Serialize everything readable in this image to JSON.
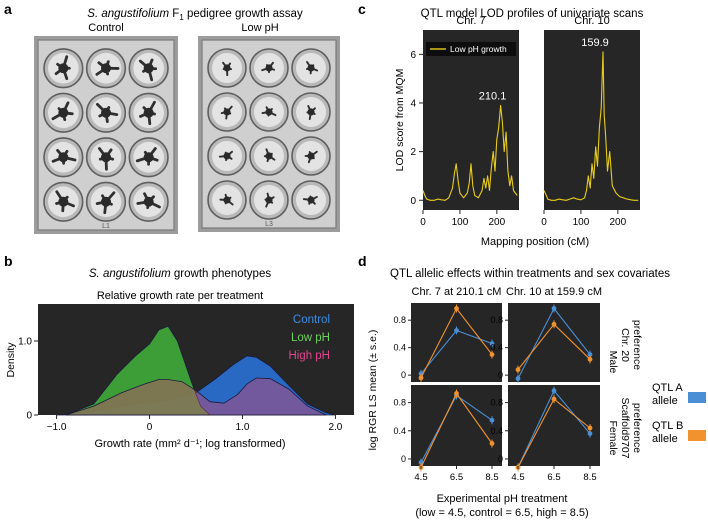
{
  "panel_letters": {
    "a": "a",
    "b": "b",
    "c": "c",
    "d": "d"
  },
  "panel_a": {
    "title_italic": "S. angustifolium",
    "title_rest": " F",
    "title_sub": "1",
    "title_end": " pedigree growth assay",
    "labels": [
      "Control",
      "Low pH"
    ],
    "plate_marks": [
      "L1",
      "L3"
    ]
  },
  "panel_b": {
    "title_italic": "S. angustifolium",
    "title_rest": " growth phenotypes",
    "subtitle": "Relative growth rate per treatment",
    "ylabel": "Density",
    "xlabel": "Growth rate (mm² d⁻¹; log transformed)"
  },
  "panel_c": {
    "title": "QTL model LOD profiles of univariate scans",
    "ylabel": "LOD score from MQM",
    "xlabel": "Mapping position (cM)",
    "legend": "Low pH growth"
  },
  "panel_d": {
    "title": "QTL allelic effects within treatments and sex covariates",
    "ylabel": "log RGR LS mean (± s.e.)",
    "xlabel": "Experimental pH treatment",
    "xnote": "(low = 4.5, control = 6.5, high = 8.5)",
    "row_labels": [
      [
        "Male",
        "Chr. 20",
        "preference"
      ],
      [
        "Female",
        "Scaffold9707",
        "preference"
      ]
    ],
    "legend": [
      {
        "line1": "QTL A",
        "line2": "allele",
        "color": "#4a8fd6"
      },
      {
        "line1": "QTL B",
        "line2": "allele",
        "color": "#f0922e"
      }
    ]
  },
  "chart_data": [
    {
      "id": "density",
      "type": "area",
      "title": "Relative growth rate per treatment",
      "xlabel": "Growth rate (mm² d⁻¹; log transformed)",
      "ylabel": "Density",
      "xlim": [
        -1.2,
        2.2
      ],
      "ylim": [
        0,
        1.5
      ],
      "xticks": [
        -1.0,
        0,
        1.0,
        2.0
      ],
      "xtick_labels": [
        "−1.0",
        "0",
        "1.0",
        "2.0"
      ],
      "yticks": [
        0,
        1.0
      ],
      "ytick_labels": [
        "0",
        "1.0"
      ],
      "series": [
        {
          "name": "Control",
          "color": "#1f6fd6",
          "x": [
            -1.0,
            -0.6,
            -0.2,
            0.2,
            0.5,
            0.7,
            0.9,
            1.05,
            1.15,
            1.3,
            1.5,
            1.7,
            1.9,
            2.0
          ],
          "values": [
            0.0,
            0.05,
            0.14,
            0.2,
            0.3,
            0.48,
            0.68,
            0.8,
            0.78,
            0.66,
            0.4,
            0.15,
            0.03,
            0.0
          ]
        },
        {
          "name": "Low pH",
          "color": "#59c04d",
          "x": [
            -0.9,
            -0.6,
            -0.35,
            -0.15,
            0.0,
            0.1,
            0.2,
            0.3,
            0.45,
            0.55,
            0.65
          ],
          "values": [
            0.0,
            0.15,
            0.55,
            0.8,
            0.96,
            1.15,
            1.2,
            1.0,
            0.45,
            0.12,
            0.0
          ]
        },
        {
          "name": "High pH",
          "color": "#e0458f",
          "x": [
            -0.9,
            -0.6,
            -0.3,
            -0.05,
            0.1,
            0.2,
            0.35,
            0.5,
            0.65,
            0.8,
            0.95,
            1.05,
            1.15,
            1.3,
            1.5,
            1.7,
            1.9
          ],
          "values": [
            0.0,
            0.12,
            0.3,
            0.42,
            0.48,
            0.48,
            0.45,
            0.33,
            0.18,
            0.16,
            0.28,
            0.42,
            0.5,
            0.49,
            0.35,
            0.12,
            0.0
          ]
        }
      ]
    },
    {
      "id": "lod",
      "type": "line",
      "title": "QTL model LOD profiles of univariate scans",
      "ylabel": "LOD score from MQM",
      "xlabel": "Mapping position (cM)",
      "series_name": "Low pH growth",
      "color": "#e8cd1c",
      "ylim": [
        -0.4,
        7.0
      ],
      "yticks": [
        0,
        2,
        4,
        6
      ],
      "panels": [
        {
          "name": "Chr. 7",
          "xlim": [
            0,
            260
          ],
          "xticks": [
            0,
            100,
            200
          ],
          "peak_label": "210.1",
          "peak_x": 210.1,
          "peak_y": 3.9,
          "x": [
            0,
            5,
            10,
            20,
            30,
            40,
            50,
            60,
            70,
            80,
            85,
            90,
            95,
            100,
            110,
            120,
            125,
            130,
            135,
            140,
            150,
            160,
            165,
            170,
            175,
            180,
            185,
            190,
            195,
            200,
            205,
            210.1,
            215,
            220,
            225,
            230,
            235,
            240,
            245,
            250,
            255
          ],
          "values": [
            0.4,
            0.2,
            0.05,
            0.0,
            0.0,
            0.05,
            0.02,
            0.0,
            0.1,
            0.5,
            1.1,
            1.5,
            0.8,
            0.3,
            0.1,
            0.3,
            0.7,
            1.5,
            0.6,
            0.2,
            0.1,
            0.4,
            0.9,
            0.5,
            1.0,
            0.4,
            1.3,
            2.0,
            1.2,
            2.5,
            3.0,
            3.9,
            3.2,
            2.0,
            2.8,
            1.2,
            0.6,
            1.0,
            0.4,
            0.3,
            0.2
          ]
        },
        {
          "name": "Chr. 10",
          "xlim": [
            0,
            260
          ],
          "xticks": [
            0,
            100,
            200
          ],
          "peak_label": "159.9",
          "peak_x": 159.9,
          "peak_y": 6.1,
          "x": [
            0,
            5,
            10,
            20,
            30,
            40,
            50,
            60,
            70,
            80,
            90,
            100,
            110,
            115,
            120,
            125,
            130,
            135,
            140,
            145,
            150,
            155,
            159.9,
            163,
            167,
            172,
            178,
            185,
            195,
            205,
            215,
            225,
            235,
            245,
            255
          ],
          "values": [
            0.4,
            0.25,
            0.05,
            0.0,
            0.0,
            0.05,
            0.02,
            0.0,
            0.05,
            0.1,
            0.05,
            0.02,
            0.1,
            0.4,
            1.0,
            0.5,
            1.5,
            0.9,
            2.2,
            1.4,
            3.0,
            3.8,
            6.1,
            3.5,
            2.6,
            1.2,
            2.0,
            0.6,
            0.3,
            0.15,
            0.1,
            0.05,
            0.02,
            0.0,
            0.0
          ]
        }
      ]
    },
    {
      "id": "allelic",
      "type": "line",
      "title": "QTL allelic effects within treatments and sex covariates",
      "x": [
        4.5,
        6.5,
        8.5
      ],
      "xtick_labels": [
        "4.5",
        "6.5",
        "8.5"
      ],
      "ylim": [
        -0.1,
        1.05
      ],
      "yticks": [
        0,
        0.4,
        0.8
      ],
      "ytick_labels": [
        "0",
        "0.4",
        "0.8"
      ],
      "columns": [
        "Chr. 7 at 210.1 cM",
        "Chr. 10 at 159.9 cM"
      ],
      "panels": [
        {
          "row": 0,
          "col": 0,
          "series": [
            {
              "name": "QTL A allele",
              "color": "#4a8fd6",
              "values": [
                0.02,
                0.65,
                0.46
              ]
            },
            {
              "name": "QTL B allele",
              "color": "#f0922e",
              "values": [
                -0.04,
                0.97,
                0.3
              ]
            }
          ]
        },
        {
          "row": 0,
          "col": 1,
          "series": [
            {
              "name": "QTL A allele",
              "color": "#4a8fd6",
              "values": [
                -0.05,
                0.97,
                0.3
              ]
            },
            {
              "name": "QTL B allele",
              "color": "#f0922e",
              "values": [
                0.08,
                0.74,
                0.23
              ]
            }
          ]
        },
        {
          "row": 1,
          "col": 0,
          "series": [
            {
              "name": "QTL A allele",
              "color": "#4a8fd6",
              "values": [
                -0.05,
                0.9,
                0.55
              ]
            },
            {
              "name": "QTL B allele",
              "color": "#f0922e",
              "values": [
                -0.12,
                0.93,
                0.22
              ]
            }
          ]
        },
        {
          "row": 1,
          "col": 1,
          "series": [
            {
              "name": "QTL A allele",
              "color": "#4a8fd6",
              "values": [
                -0.12,
                0.97,
                0.36
              ]
            },
            {
              "name": "QTL B allele",
              "color": "#f0922e",
              "values": [
                -0.12,
                0.85,
                0.44
              ]
            }
          ]
        }
      ]
    }
  ]
}
